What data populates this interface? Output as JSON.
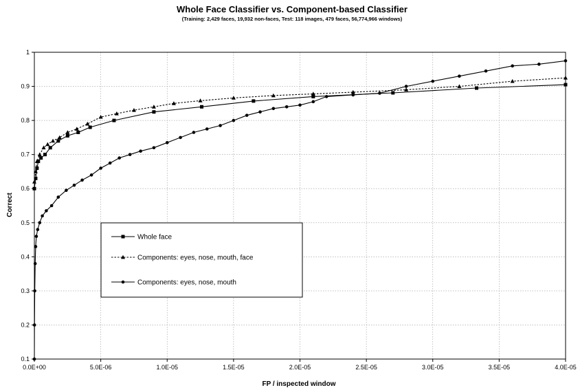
{
  "chart_data": {
    "type": "line",
    "title": "Whole Face Classifier vs. Component-based Classifier",
    "subtitle": "(Training: 2,429 faces, 19,932 non-faces, Test: 118 images, 479 faces, 56,774,966 windows)",
    "xlabel": "FP / inspected window",
    "ylabel": "Correct",
    "xlim": [
      0,
      4e-05
    ],
    "ylim": [
      0.1,
      1.0
    ],
    "x_ticks": [
      0,
      5e-06,
      1e-05,
      1.5e-05,
      2e-05,
      2.5e-05,
      3e-05,
      3.5e-05,
      4e-05
    ],
    "x_tick_labels": [
      "0.0E+00",
      "5.0E-06",
      "1.0E-05",
      "1.5E-05",
      "2.0E-05",
      "2.5E-05",
      "3.0E-05",
      "3.5E-05",
      "4.0E-05"
    ],
    "y_ticks": [
      0.1,
      0.2,
      0.3,
      0.4,
      0.5,
      0.6,
      0.7,
      0.8,
      0.9,
      1.0
    ],
    "y_tick_labels": [
      "0.1",
      "0.2",
      "0.3",
      "0.4",
      "0.5",
      "0.6",
      "0.7",
      "0.8",
      "0.9",
      "1"
    ],
    "grid": true,
    "legend_position": "center-left",
    "series": [
      {
        "name": "Whole face",
        "marker": "square",
        "line": "solid",
        "color": "#000000",
        "x": [
          0,
          1e-07,
          2e-07,
          3e-07,
          5e-07,
          8e-07,
          1.2e-06,
          1.8e-06,
          2.5e-06,
          3.3e-06,
          4.2e-06,
          6e-06,
          9e-06,
          1.26e-05,
          1.65e-05,
          2.1e-05,
          2.7e-05,
          3.33e-05,
          4e-05
        ],
        "y": [
          0.6,
          0.63,
          0.66,
          0.68,
          0.69,
          0.7,
          0.72,
          0.74,
          0.755,
          0.765,
          0.78,
          0.8,
          0.825,
          0.84,
          0.857,
          0.87,
          0.881,
          0.895,
          0.905
        ]
      },
      {
        "name": "Components: eyes, nose, mouth, face",
        "marker": "triangle",
        "line": "dotted",
        "color": "#000000",
        "x": [
          0,
          1e-07,
          2e-07,
          4e-07,
          7e-07,
          1e-06,
          1.4e-06,
          1.9e-06,
          2.5e-06,
          3.2e-06,
          4e-06,
          5e-06,
          6.2e-06,
          7.5e-06,
          9e-06,
          1.05e-05,
          1.25e-05,
          1.5e-05,
          1.8e-05,
          2.1e-05,
          2.4e-05,
          2.8e-05,
          3.2e-05,
          3.6e-05,
          4e-05
        ],
        "y": [
          0.62,
          0.65,
          0.68,
          0.7,
          0.72,
          0.73,
          0.74,
          0.75,
          0.765,
          0.775,
          0.79,
          0.81,
          0.82,
          0.83,
          0.84,
          0.85,
          0.858,
          0.866,
          0.873,
          0.878,
          0.883,
          0.89,
          0.9,
          0.915,
          0.925
        ]
      },
      {
        "name": "Components: eyes, nose, mouth",
        "marker": "circle",
        "line": "solid",
        "color": "#000000",
        "x": [
          0,
          1e-08,
          3e-08,
          6e-08,
          1e-07,
          1.5e-07,
          2.5e-07,
          4e-07,
          6e-07,
          9e-07,
          1.3e-06,
          1.8e-06,
          2.4e-06,
          3e-06,
          3.6e-06,
          4.3e-06,
          5e-06,
          5.7e-06,
          6.4e-06,
          7.2e-06,
          8e-06,
          9e-06,
          1e-05,
          1.1e-05,
          1.2e-05,
          1.3e-05,
          1.4e-05,
          1.5e-05,
          1.6e-05,
          1.7e-05,
          1.8e-05,
          1.9e-05,
          2e-05,
          2.1e-05,
          2.2e-05,
          2.4e-05,
          2.6e-05,
          2.8e-05,
          3e-05,
          3.2e-05,
          3.4e-05,
          3.6e-05,
          3.8e-05,
          4e-05
        ],
        "y": [
          0.1,
          0.2,
          0.3,
          0.38,
          0.43,
          0.46,
          0.48,
          0.5,
          0.52,
          0.535,
          0.55,
          0.575,
          0.595,
          0.61,
          0.625,
          0.64,
          0.66,
          0.675,
          0.69,
          0.7,
          0.71,
          0.72,
          0.735,
          0.75,
          0.765,
          0.775,
          0.785,
          0.8,
          0.815,
          0.825,
          0.835,
          0.84,
          0.845,
          0.855,
          0.87,
          0.875,
          0.88,
          0.9,
          0.915,
          0.93,
          0.945,
          0.96,
          0.965,
          0.975
        ]
      }
    ]
  }
}
